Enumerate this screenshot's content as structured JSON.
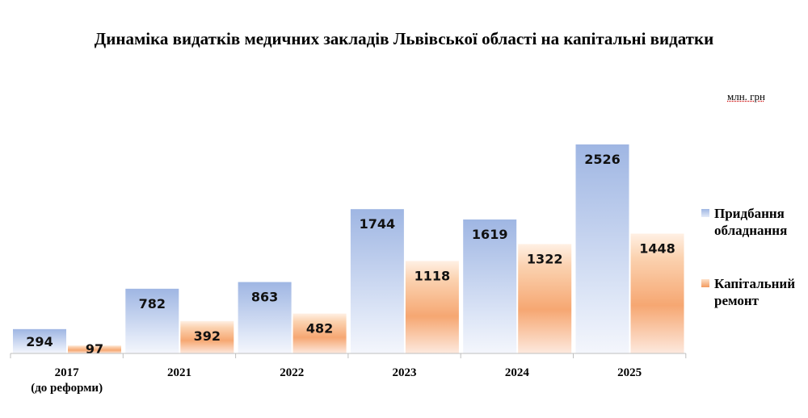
{
  "chart_data": {
    "type": "bar",
    "title": "Динаміка видатків медичних закладів Львівської області на капітальні видатки",
    "unit": "млн. грн",
    "categories": [
      [
        "2017",
        "(до реформи)"
      ],
      [
        "2021"
      ],
      [
        "2022"
      ],
      [
        "2023"
      ],
      [
        "2024"
      ],
      [
        "2025"
      ]
    ],
    "series": [
      {
        "name": "Придбання обладнання",
        "values": [
          294,
          782,
          863,
          1744,
          1619,
          2526
        ],
        "color": "#a7bde6"
      },
      {
        "name": "Капітальний ремонт",
        "values": [
          97,
          392,
          482,
          1118,
          1322,
          1448
        ],
        "color": "#f6a772"
      }
    ],
    "ylim": [
      0,
      2526
    ],
    "legend": "right",
    "grid": false
  }
}
